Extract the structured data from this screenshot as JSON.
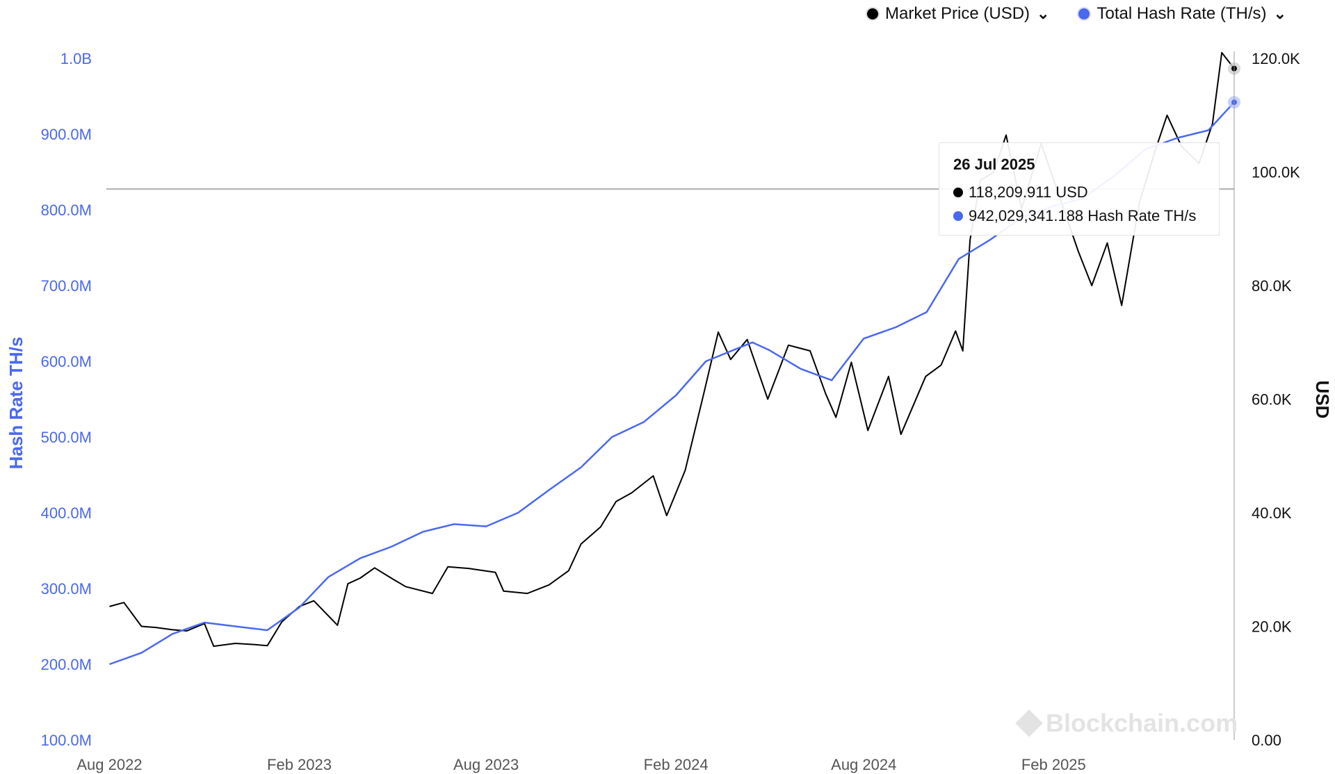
{
  "legend": {
    "items": [
      {
        "label": "Market Price (USD)",
        "color": "#000000",
        "chevron": "chevron-down-icon"
      },
      {
        "label": "Total Hash Rate (TH/s)",
        "color": "#4a68f0",
        "chevron": "chevron-down-icon"
      }
    ]
  },
  "tooltip": {
    "date": "26 Jul 2025",
    "price_text": "118,209.911 USD",
    "hash_text": "942,029,341.188 Hash Rate TH/s"
  },
  "watermark": "Blockchain.com",
  "chart_data": {
    "type": "line",
    "xlabel": "",
    "left_axis_label": "Hash Rate TH/s",
    "right_axis_label": "USD",
    "x_ticks": [
      "Aug 2022",
      "Feb 2023",
      "Aug 2023",
      "Feb 2024",
      "Aug 2024",
      "Feb 2025"
    ],
    "x_domain": [
      "2022-07-29",
      "2025-07-26"
    ],
    "x_tick_dates": [
      "2022-08-01",
      "2023-02-01",
      "2023-08-01",
      "2024-02-01",
      "2024-08-01",
      "2025-02-01"
    ],
    "left_ylim": [
      100000000,
      1000000000
    ],
    "left_ticks": [
      "100.0M",
      "200.0M",
      "300.0M",
      "400.0M",
      "500.0M",
      "600.0M",
      "700.0M",
      "800.0M",
      "900.0M",
      "1.0B"
    ],
    "right_ylim": [
      0,
      120000
    ],
    "right_ticks": [
      "0.00",
      "20.0K",
      "40.0K",
      "60.0K",
      "80.0K",
      "100.0K",
      "120.0K"
    ],
    "crosshair_y_usd": 97000,
    "series": [
      {
        "name": "Market Price (USD)",
        "axis": "right",
        "color": "#000000",
        "points": [
          [
            "2022-08-01",
            23500
          ],
          [
            "2022-08-15",
            24200
          ],
          [
            "2022-09-01",
            20000
          ],
          [
            "2022-09-15",
            19800
          ],
          [
            "2022-10-01",
            19400
          ],
          [
            "2022-10-15",
            19200
          ],
          [
            "2022-11-01",
            20500
          ],
          [
            "2022-11-10",
            16500
          ],
          [
            "2022-12-01",
            17000
          ],
          [
            "2022-12-20",
            16800
          ],
          [
            "2023-01-01",
            16600
          ],
          [
            "2023-01-15",
            20800
          ],
          [
            "2023-02-01",
            23500
          ],
          [
            "2023-02-15",
            24500
          ],
          [
            "2023-03-10",
            20200
          ],
          [
            "2023-03-20",
            27500
          ],
          [
            "2023-04-01",
            28500
          ],
          [
            "2023-04-15",
            30300
          ],
          [
            "2023-05-01",
            28500
          ],
          [
            "2023-05-15",
            27000
          ],
          [
            "2023-06-10",
            25800
          ],
          [
            "2023-06-25",
            30500
          ],
          [
            "2023-07-15",
            30200
          ],
          [
            "2023-08-10",
            29500
          ],
          [
            "2023-08-18",
            26200
          ],
          [
            "2023-09-10",
            25800
          ],
          [
            "2023-10-01",
            27300
          ],
          [
            "2023-10-20",
            29800
          ],
          [
            "2023-11-01",
            34500
          ],
          [
            "2023-11-20",
            37500
          ],
          [
            "2023-12-05",
            42000
          ],
          [
            "2023-12-20",
            43500
          ],
          [
            "2024-01-10",
            46500
          ],
          [
            "2024-01-23",
            39500
          ],
          [
            "2024-02-10",
            47500
          ],
          [
            "2024-02-28",
            61000
          ],
          [
            "2024-03-13",
            71800
          ],
          [
            "2024-03-25",
            67000
          ],
          [
            "2024-04-10",
            70500
          ],
          [
            "2024-04-30",
            60000
          ],
          [
            "2024-05-20",
            69500
          ],
          [
            "2024-06-10",
            68500
          ],
          [
            "2024-06-25",
            61000
          ],
          [
            "2024-07-05",
            56800
          ],
          [
            "2024-07-20",
            66500
          ],
          [
            "2024-08-05",
            54500
          ],
          [
            "2024-08-25",
            64000
          ],
          [
            "2024-09-06",
            53800
          ],
          [
            "2024-09-30",
            64000
          ],
          [
            "2024-10-15",
            66000
          ],
          [
            "2024-10-29",
            72000
          ],
          [
            "2024-11-05",
            68500
          ],
          [
            "2024-11-12",
            88000
          ],
          [
            "2024-11-22",
            98500
          ],
          [
            "2024-12-05",
            100000
          ],
          [
            "2024-12-17",
            106500
          ],
          [
            "2025-01-01",
            93500
          ],
          [
            "2025-01-20",
            105000
          ],
          [
            "2025-02-03",
            97500
          ],
          [
            "2025-02-25",
            86000
          ],
          [
            "2025-03-10",
            80000
          ],
          [
            "2025-03-25",
            87500
          ],
          [
            "2025-04-08",
            76500
          ],
          [
            "2025-04-25",
            94500
          ],
          [
            "2025-05-10",
            103500
          ],
          [
            "2025-05-22",
            110000
          ],
          [
            "2025-06-05",
            104500
          ],
          [
            "2025-06-22",
            101500
          ],
          [
            "2025-07-05",
            108500
          ],
          [
            "2025-07-14",
            121000
          ],
          [
            "2025-07-26",
            118209.911
          ]
        ]
      },
      {
        "name": "Total Hash Rate (TH/s)",
        "axis": "left",
        "color": "#4a68f0",
        "points": [
          [
            "2022-08-01",
            200000000
          ],
          [
            "2022-09-01",
            215000000
          ],
          [
            "2022-10-01",
            240000000
          ],
          [
            "2022-11-01",
            255000000
          ],
          [
            "2022-12-01",
            250000000
          ],
          [
            "2023-01-01",
            245000000
          ],
          [
            "2023-02-01",
            275000000
          ],
          [
            "2023-03-01",
            315000000
          ],
          [
            "2023-04-01",
            340000000
          ],
          [
            "2023-05-01",
            355000000
          ],
          [
            "2023-06-01",
            375000000
          ],
          [
            "2023-07-01",
            385000000
          ],
          [
            "2023-08-01",
            382000000
          ],
          [
            "2023-09-01",
            400000000
          ],
          [
            "2023-10-01",
            430000000
          ],
          [
            "2023-11-01",
            460000000
          ],
          [
            "2023-12-01",
            500000000
          ],
          [
            "2024-01-01",
            520000000
          ],
          [
            "2024-02-01",
            555000000
          ],
          [
            "2024-03-01",
            600000000
          ],
          [
            "2024-04-15",
            625000000
          ],
          [
            "2024-05-01",
            615000000
          ],
          [
            "2024-06-01",
            590000000
          ],
          [
            "2024-07-01",
            575000000
          ],
          [
            "2024-08-01",
            630000000
          ],
          [
            "2024-09-01",
            645000000
          ],
          [
            "2024-10-01",
            665000000
          ],
          [
            "2024-11-01",
            735000000
          ],
          [
            "2024-12-01",
            760000000
          ],
          [
            "2025-01-01",
            790000000
          ],
          [
            "2025-02-01",
            805000000
          ],
          [
            "2025-03-01",
            815000000
          ],
          [
            "2025-04-01",
            845000000
          ],
          [
            "2025-05-01",
            880000000
          ],
          [
            "2025-06-01",
            895000000
          ],
          [
            "2025-07-01",
            905000000
          ],
          [
            "2025-07-26",
            942029341.188
          ]
        ]
      }
    ]
  }
}
